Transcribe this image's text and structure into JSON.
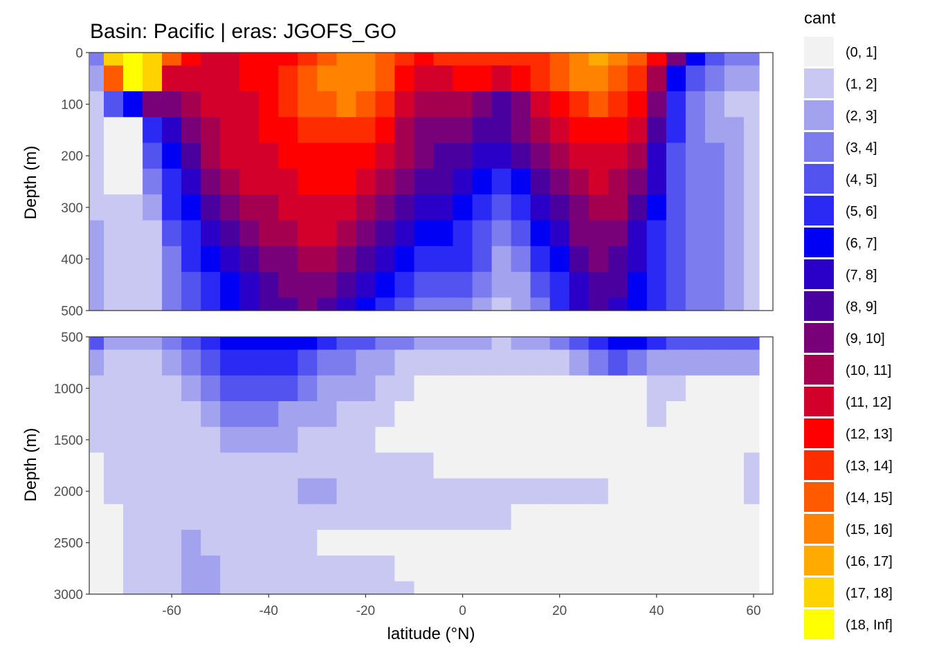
{
  "chart_data": {
    "type": "heatmap",
    "title": "Basin: Pacific | eras: JGOFS_GO",
    "xlabel": "latitude (°N)",
    "ylabel": "Depth (m)",
    "xlim": [
      -77,
      64
    ],
    "x_ticks": [
      -60,
      -40,
      -20,
      0,
      20,
      40,
      60
    ],
    "panels": [
      {
        "name": "upper",
        "ylim": [
          0,
          500
        ],
        "y_ticks": [
          0,
          100,
          200,
          300,
          400,
          500
        ],
        "depths": [
          0,
          50,
          100,
          150,
          200,
          250,
          300,
          350,
          400,
          450,
          500
        ],
        "latitudes": [
          -76,
          -72,
          -68,
          -64,
          -60,
          -56,
          -52,
          -48,
          -44,
          -40,
          -36,
          -32,
          -28,
          -24,
          -20,
          -16,
          -12,
          -8,
          -4,
          0,
          4,
          8,
          12,
          16,
          20,
          24,
          28,
          32,
          36,
          40,
          44,
          48,
          52,
          56,
          60
        ],
        "values": [
          [
            4,
            18,
            19,
            18,
            15,
            13,
            12,
            12,
            13,
            13,
            13,
            14,
            15,
            16,
            16,
            15,
            14,
            13,
            14,
            14,
            14,
            14,
            14,
            14,
            15,
            16,
            17,
            16,
            15,
            13,
            10,
            7,
            5,
            4,
            4
          ],
          [
            3,
            15,
            19,
            18,
            12,
            12,
            12,
            12,
            13,
            13,
            14,
            15,
            16,
            16,
            16,
            15,
            13,
            12,
            12,
            13,
            13,
            12,
            13,
            14,
            15,
            16,
            16,
            15,
            14,
            11,
            7,
            5,
            4,
            3,
            3
          ],
          [
            2,
            5,
            7,
            10,
            10,
            11,
            12,
            12,
            12,
            13,
            14,
            15,
            15,
            16,
            15,
            14,
            12,
            11,
            11,
            11,
            10,
            9,
            10,
            12,
            13,
            14,
            15,
            14,
            13,
            10,
            6,
            4,
            3,
            2,
            2
          ],
          [
            2,
            1,
            1,
            6,
            8,
            10,
            11,
            12,
            12,
            13,
            13,
            14,
            14,
            14,
            14,
            13,
            11,
            10,
            10,
            10,
            9,
            9,
            10,
            11,
            12,
            13,
            13,
            13,
            12,
            9,
            6,
            4,
            3,
            3,
            2
          ],
          [
            2,
            1,
            1,
            5,
            7,
            9,
            11,
            12,
            12,
            12,
            13,
            13,
            13,
            13,
            13,
            12,
            11,
            10,
            9,
            9,
            8,
            8,
            9,
            10,
            11,
            12,
            12,
            12,
            11,
            8,
            5,
            4,
            4,
            3,
            2
          ],
          [
            2,
            1,
            1,
            4,
            6,
            8,
            10,
            11,
            12,
            12,
            12,
            13,
            13,
            13,
            12,
            11,
            10,
            9,
            9,
            8,
            7,
            6,
            7,
            9,
            10,
            11,
            12,
            11,
            10,
            8,
            5,
            4,
            4,
            3,
            2
          ],
          [
            2,
            2,
            2,
            3,
            6,
            7,
            9,
            10,
            11,
            11,
            12,
            12,
            12,
            12,
            11,
            10,
            9,
            8,
            8,
            7,
            6,
            5,
            6,
            8,
            9,
            10,
            11,
            11,
            9,
            7,
            5,
            4,
            4,
            3,
            2
          ],
          [
            3,
            2,
            2,
            2,
            5,
            6,
            8,
            9,
            10,
            11,
            11,
            12,
            12,
            11,
            10,
            9,
            8,
            7,
            7,
            6,
            5,
            4,
            5,
            7,
            8,
            10,
            10,
            10,
            8,
            6,
            5,
            4,
            4,
            3,
            2
          ],
          [
            3,
            2,
            2,
            2,
            4,
            6,
            7,
            8,
            9,
            10,
            10,
            11,
            11,
            10,
            9,
            8,
            7,
            6,
            6,
            6,
            5,
            3,
            4,
            6,
            7,
            9,
            10,
            9,
            8,
            6,
            5,
            4,
            4,
            3,
            2
          ],
          [
            3,
            2,
            2,
            2,
            4,
            5,
            6,
            7,
            8,
            9,
            10,
            10,
            10,
            9,
            8,
            7,
            6,
            5,
            5,
            5,
            4,
            3,
            3,
            5,
            6,
            8,
            9,
            9,
            7,
            6,
            5,
            4,
            4,
            3,
            2
          ],
          [
            3,
            2,
            2,
            2,
            4,
            5,
            6,
            7,
            8,
            9,
            9,
            10,
            9,
            8,
            7,
            6,
            5,
            4,
            4,
            4,
            3,
            2,
            3,
            4,
            6,
            8,
            9,
            8,
            7,
            6,
            5,
            4,
            4,
            3,
            2
          ]
        ]
      },
      {
        "name": "lower",
        "ylim": [
          500,
          3000
        ],
        "y_ticks": [
          500,
          1000,
          1500,
          2000,
          2500,
          3000
        ],
        "depths": [
          500,
          750,
          1000,
          1250,
          1500,
          1750,
          2000,
          2250,
          2500,
          2750,
          3000
        ],
        "latitudes": [
          -76,
          -72,
          -68,
          -64,
          -60,
          -56,
          -52,
          -48,
          -44,
          -40,
          -36,
          -32,
          -28,
          -24,
          -20,
          -16,
          -12,
          -8,
          -4,
          0,
          4,
          8,
          12,
          16,
          20,
          24,
          28,
          32,
          36,
          40,
          44,
          48,
          52,
          56,
          60
        ],
        "values": [
          [
            5,
            3,
            3,
            3,
            4,
            5,
            6,
            7,
            7,
            7,
            7,
            7,
            6,
            5,
            5,
            4,
            4,
            3,
            3,
            3,
            3,
            2,
            3,
            3,
            4,
            5,
            6,
            7,
            7,
            6,
            5,
            5,
            5,
            5,
            5
          ],
          [
            3,
            2,
            2,
            2,
            3,
            4,
            5,
            6,
            6,
            6,
            6,
            5,
            4,
            4,
            3,
            3,
            2,
            2,
            2,
            2,
            2,
            2,
            2,
            2,
            2,
            3,
            4,
            5,
            4,
            3,
            3,
            3,
            3,
            3,
            3
          ],
          [
            2,
            2,
            2,
            2,
            2,
            3,
            4,
            5,
            5,
            5,
            5,
            4,
            3,
            3,
            3,
            2,
            2,
            1,
            1,
            1,
            1,
            1,
            1,
            1,
            1,
            1,
            1,
            1,
            1,
            2,
            2,
            1,
            1,
            1,
            1
          ],
          [
            2,
            2,
            2,
            2,
            2,
            2,
            3,
            4,
            4,
            4,
            3,
            3,
            3,
            2,
            2,
            2,
            1,
            1,
            1,
            1,
            1,
            1,
            1,
            1,
            1,
            1,
            1,
            1,
            1,
            2,
            1,
            1,
            1,
            1,
            1
          ],
          [
            2,
            2,
            2,
            2,
            2,
            2,
            2,
            3,
            3,
            3,
            3,
            2,
            2,
            2,
            2,
            1,
            1,
            1,
            1,
            1,
            1,
            1,
            1,
            1,
            1,
            1,
            1,
            1,
            1,
            1,
            1,
            1,
            1,
            1,
            1
          ],
          [
            1,
            2,
            2,
            2,
            2,
            2,
            2,
            2,
            2,
            2,
            2,
            2,
            2,
            2,
            2,
            2,
            2,
            2,
            1,
            1,
            1,
            1,
            1,
            1,
            1,
            1,
            1,
            1,
            1,
            1,
            1,
            1,
            1,
            1,
            2
          ],
          [
            1,
            2,
            2,
            2,
            2,
            2,
            2,
            2,
            2,
            2,
            2,
            3,
            3,
            2,
            2,
            2,
            2,
            2,
            2,
            2,
            2,
            2,
            2,
            2,
            2,
            2,
            2,
            1,
            1,
            1,
            1,
            1,
            1,
            1,
            2
          ],
          [
            1,
            1,
            2,
            2,
            2,
            2,
            2,
            2,
            2,
            2,
            2,
            2,
            2,
            2,
            2,
            2,
            2,
            2,
            2,
            2,
            2,
            2,
            1,
            1,
            1,
            1,
            1,
            1,
            1,
            1,
            1,
            1,
            1,
            1,
            1
          ],
          [
            1,
            1,
            2,
            2,
            2,
            3,
            2,
            2,
            2,
            2,
            2,
            2,
            1,
            1,
            1,
            1,
            1,
            1,
            1,
            1,
            1,
            1,
            1,
            1,
            1,
            1,
            1,
            1,
            1,
            1,
            1,
            1,
            1,
            1,
            1
          ],
          [
            1,
            1,
            2,
            2,
            2,
            3,
            3,
            2,
            2,
            2,
            2,
            2,
            2,
            2,
            2,
            2,
            1,
            1,
            1,
            1,
            1,
            1,
            1,
            1,
            1,
            1,
            1,
            1,
            1,
            1,
            1,
            1,
            1,
            1,
            1
          ],
          [
            1,
            1,
            2,
            2,
            2,
            3,
            3,
            2,
            2,
            2,
            2,
            2,
            2,
            2,
            2,
            2,
            2,
            1,
            1,
            1,
            1,
            1,
            1,
            1,
            1,
            1,
            1,
            1,
            1,
            1,
            1,
            1,
            1,
            1,
            1
          ]
        ]
      }
    ],
    "legend": {
      "title": "cant",
      "placement": "right",
      "labels": [
        "(0, 1]",
        "(1, 2]",
        "(2, 3]",
        "(3, 4]",
        "(4, 5]",
        "(5, 6]",
        "(6, 7]",
        "(7, 8]",
        "(8, 9]",
        "(9, 10]",
        "(10, 11]",
        "(11, 12]",
        "(12, 13]",
        "(13, 14]",
        "(14, 15]",
        "(15, 16]",
        "(16, 17]",
        "(17, 18]",
        "(18, Inf]"
      ],
      "colors": [
        "#f2f2f2",
        "#c8c8f2",
        "#a2a2ee",
        "#7c7cee",
        "#5353f0",
        "#2a2af4",
        "#0000f5",
        "#2a00c8",
        "#4a009e",
        "#780078",
        "#a5004f",
        "#d4002c",
        "#fe0000",
        "#fe2d00",
        "#ff5a00",
        "#ff8300",
        "#ffaa00",
        "#ffd300",
        "#ffff00"
      ]
    }
  }
}
